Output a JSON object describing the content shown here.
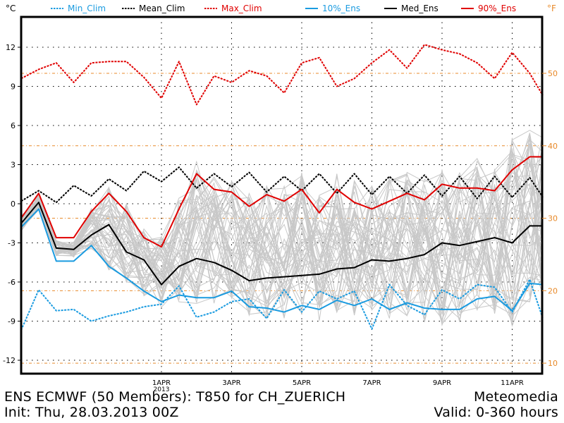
{
  "chart_data": {
    "type": "line",
    "title": "ENS ECMWF (50 Members): T850 for CH_ZUERICH",
    "subtitle": "Init: Thu, 28.03.2013 00Z",
    "source": "Meteomedia",
    "valid": "Valid: 0-360 hours",
    "ylabel_left": "°C",
    "ylabel_right": "°F",
    "ylim": [
      -13.5,
      14.5
    ],
    "xlim_hours": [
      0,
      357
    ],
    "yticks_left": [
      12,
      9,
      6,
      3,
      0,
      -3,
      -6,
      -9,
      -12
    ],
    "yticks_left_labels": [
      "12",
      "9",
      "6",
      "3",
      "0",
      "-3",
      "-6",
      "-9",
      "-12"
    ],
    "yticks_right_f": [
      50,
      40,
      30,
      20,
      10
    ],
    "yticks_right_labels": [
      "50",
      "40",
      "30",
      "20",
      "10"
    ],
    "xticks_hours": [
      96,
      144,
      192,
      240,
      288,
      336
    ],
    "xtick_labels": [
      "1APR",
      "3APR",
      "5APR",
      "7APR",
      "9APR",
      "11APR"
    ],
    "xtick_year": "2013",
    "grid": true,
    "legend_position": "top",
    "x_hours": [
      0,
      12,
      24,
      36,
      48,
      60,
      72,
      84,
      96,
      108,
      120,
      132,
      144,
      156,
      168,
      180,
      192,
      204,
      216,
      228,
      240,
      252,
      264,
      276,
      288,
      300,
      312,
      324,
      336,
      348,
      357
    ],
    "series": [
      {
        "name": "Min_Clim",
        "color": "#1a9be0",
        "style": "dotted",
        "values": [
          -9.7,
          -6.6,
          -8.2,
          -8.1,
          -9.0,
          -8.6,
          -8.3,
          -7.9,
          -7.7,
          -6.3,
          -8.7,
          -8.3,
          -7.5,
          -7.3,
          -8.8,
          -6.6,
          -8.3,
          -6.7,
          -7.3,
          -6.7,
          -9.6,
          -6.2,
          -7.8,
          -8.5,
          -6.6,
          -7.3,
          -6.2,
          -6.4,
          -8.3,
          -5.8,
          -8.8
        ]
      },
      {
        "name": "Mean_Clim",
        "color": "#000000",
        "style": "dotted",
        "values": [
          0.2,
          1.0,
          0.1,
          1.4,
          0.6,
          1.9,
          1.0,
          2.5,
          1.7,
          2.8,
          1.2,
          2.3,
          1.3,
          2.4,
          0.9,
          2.1,
          1.0,
          2.3,
          0.8,
          2.3,
          0.7,
          2.1,
          0.8,
          2.2,
          0.6,
          2.1,
          0.4,
          2.1,
          0.5,
          2.0,
          0.5
        ]
      },
      {
        "name": "Max_Clim",
        "color": "#e00000",
        "style": "dotted",
        "values": [
          9.6,
          10.3,
          10.8,
          9.3,
          10.8,
          10.9,
          10.9,
          9.7,
          8.1,
          10.9,
          7.6,
          9.8,
          9.3,
          10.2,
          9.8,
          8.5,
          10.8,
          11.2,
          9.0,
          9.6,
          10.8,
          11.8,
          10.4,
          12.2,
          11.8,
          11.5,
          10.8,
          9.6,
          11.6,
          10.0,
          8.3
        ]
      },
      {
        "name": "10%_Ens",
        "color": "#1a9be0",
        "style": "solid",
        "values": [
          -1.8,
          -0.4,
          -4.4,
          -4.4,
          -3.2,
          -4.8,
          -5.7,
          -6.7,
          -7.5,
          -7.0,
          -7.2,
          -7.2,
          -6.7,
          -7.9,
          -8.0,
          -8.3,
          -7.8,
          -8.1,
          -7.4,
          -7.8,
          -7.3,
          -8.1,
          -7.6,
          -8.0,
          -8.1,
          -8.1,
          -7.3,
          -7.1,
          -8.2,
          -6.1,
          -6.2
        ]
      },
      {
        "name": "Med_Ens",
        "color": "#000000",
        "style": "solid",
        "values": [
          -1.5,
          0.1,
          -3.4,
          -3.5,
          -2.4,
          -1.6,
          -3.7,
          -4.3,
          -6.2,
          -4.8,
          -4.2,
          -4.5,
          -5.1,
          -5.9,
          -5.7,
          -5.6,
          -5.5,
          -5.4,
          -5.0,
          -4.9,
          -4.3,
          -4.4,
          -4.2,
          -3.9,
          -3.0,
          -3.2,
          -2.9,
          -2.6,
          -3.0,
          -1.7,
          -1.7
        ]
      },
      {
        "name": "90%_Ens",
        "color": "#e00000",
        "style": "solid",
        "values": [
          -1.1,
          0.8,
          -2.6,
          -2.6,
          -0.6,
          0.8,
          -0.6,
          -2.6,
          -3.3,
          -0.4,
          2.3,
          1.1,
          0.9,
          -0.2,
          0.7,
          0.2,
          1.1,
          -0.7,
          1.1,
          0.1,
          -0.4,
          0.2,
          0.8,
          0.3,
          1.5,
          1.2,
          1.2,
          1.0,
          2.6,
          3.6,
          3.6
        ]
      }
    ],
    "ensemble_members_count": 50
  },
  "legend": [
    {
      "label": "Min_Clim",
      "color": "#1a9be0",
      "style": "dotted"
    },
    {
      "label": "Mean_Clim",
      "color": "#000000",
      "style": "dotted"
    },
    {
      "label": "Max_Clim",
      "color": "#e00000",
      "style": "dotted"
    },
    {
      "label": "10%_Ens",
      "color": "#1a9be0",
      "style": "solid"
    },
    {
      "label": "Med_Ens",
      "color": "#000000",
      "style": "solid"
    },
    {
      "label": "90%_Ens",
      "color": "#e00000",
      "style": "solid"
    }
  ],
  "colors": {
    "fahrenheit_axis": "#e88a2a",
    "ensemble_member": "#c8c8c8",
    "grid": "#000000"
  }
}
